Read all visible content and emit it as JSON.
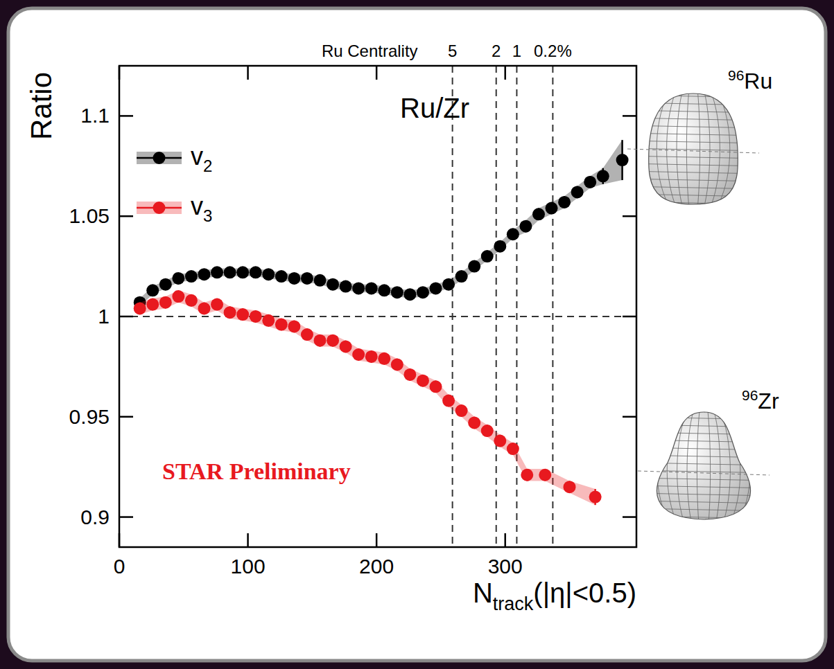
{
  "chart_data": {
    "type": "scatter",
    "x_label": "Ntrack(|η|<0.5)",
    "y_label": "Ratio",
    "xlim": [
      0,
      402
    ],
    "ylim": [
      0.885,
      1.125
    ],
    "xticks": [
      0,
      100,
      200,
      300
    ],
    "yticks": [
      0.9,
      0.95,
      1,
      1.05,
      1.1
    ],
    "reference_line": 1,
    "legend": "upper left",
    "marker": "circle",
    "annotations": [
      {
        "text": "Ru/Zr"
      },
      {
        "text": "STAR Preliminary",
        "color": "#e8191f"
      }
    ],
    "centrality_axis": {
      "title": "Ru Centrality",
      "ticks": [
        {
          "value": 259,
          "label": "5"
        },
        {
          "value": 293,
          "label": "2"
        },
        {
          "value": 309,
          "label": "1"
        },
        {
          "value": 337,
          "label": "0.2%"
        }
      ]
    },
    "nuclei": [
      "96Ru",
      "96Zr"
    ],
    "series": [
      {
        "name": "v2",
        "color": "#000000",
        "x": [
          16,
          26,
          36,
          46,
          56,
          66,
          76,
          86,
          96,
          106,
          116,
          126,
          136,
          146,
          156,
          166,
          176,
          186,
          196,
          206,
          216,
          226,
          236,
          246,
          256,
          266,
          276,
          286,
          296,
          306,
          316,
          326,
          336,
          346,
          356,
          366,
          376,
          391
        ],
        "values": [
          1.007,
          1.013,
          1.016,
          1.019,
          1.02,
          1.021,
          1.022,
          1.022,
          1.022,
          1.022,
          1.021,
          1.02,
          1.019,
          1.019,
          1.018,
          1.016,
          1.015,
          1.014,
          1.014,
          1.013,
          1.012,
          1.011,
          1.012,
          1.014,
          1.016,
          1.02,
          1.025,
          1.03,
          1.035,
          1.041,
          1.045,
          1.051,
          1.054,
          1.057,
          1.062,
          1.067,
          1.07,
          1.078
        ],
        "errors": [
          0.002,
          0.002,
          0.002,
          0.002,
          0.002,
          0.002,
          0.002,
          0.002,
          0.002,
          0.002,
          0.002,
          0.002,
          0.002,
          0.002,
          0.002,
          0.002,
          0.002,
          0.002,
          0.002,
          0.002,
          0.002,
          0.002,
          0.002,
          0.002,
          0.002,
          0.002,
          0.002,
          0.002,
          0.002,
          0.002,
          0.003,
          0.003,
          0.003,
          0.003,
          0.003,
          0.003,
          0.004,
          0.01
        ]
      },
      {
        "name": "v3",
        "color": "#e8191f",
        "x": [
          16,
          26,
          36,
          46,
          56,
          66,
          76,
          86,
          96,
          106,
          116,
          126,
          136,
          146,
          156,
          166,
          176,
          186,
          196,
          206,
          216,
          226,
          236,
          246,
          256,
          266,
          276,
          286,
          296,
          306,
          317,
          331,
          350,
          370
        ],
        "values": [
          1.004,
          1.006,
          1.007,
          1.01,
          1.008,
          1.004,
          1.006,
          1.002,
          1.001,
          1.0,
          0.998,
          0.996,
          0.995,
          0.991,
          0.988,
          0.988,
          0.985,
          0.981,
          0.98,
          0.979,
          0.976,
          0.971,
          0.968,
          0.965,
          0.958,
          0.953,
          0.947,
          0.943,
          0.938,
          0.934,
          0.921,
          0.921,
          0.915,
          0.91
        ],
        "errors": [
          0.003,
          0.003,
          0.003,
          0.003,
          0.003,
          0.003,
          0.003,
          0.003,
          0.003,
          0.003,
          0.003,
          0.003,
          0.003,
          0.003,
          0.003,
          0.003,
          0.003,
          0.003,
          0.003,
          0.003,
          0.003,
          0.003,
          0.003,
          0.003,
          0.003,
          0.003,
          0.003,
          0.003,
          0.003,
          0.003,
          0.003,
          0.003,
          0.003,
          0.004
        ]
      }
    ]
  }
}
